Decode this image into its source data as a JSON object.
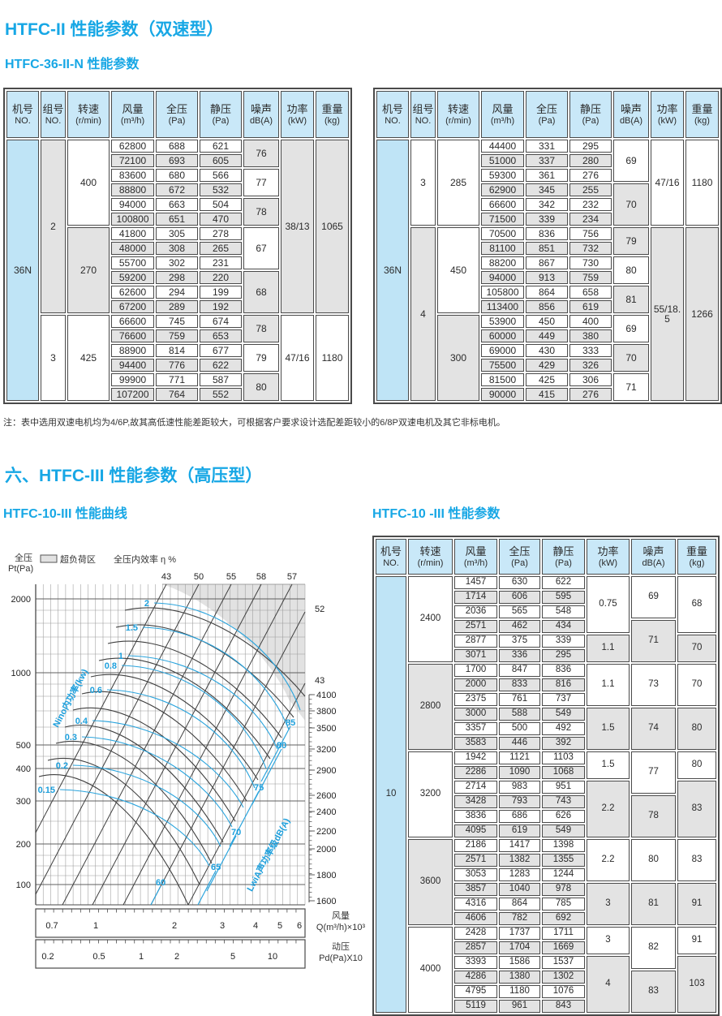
{
  "titles": {
    "h1_dual": "HTFC-II 性能参数（双速型）",
    "h2_36": "HTFC-36-II-N 性能参数",
    "h1_high": "六、HTFC-III 性能参数（高压型）",
    "h2_curve": "HTFC-10-III 性能曲线",
    "h2_params": "HTFC-10 -III 性能参数"
  },
  "note": "注：表中选用双速电机均为4/6P,故其高低速性能差距较大，可根据客户要求设计选配差距较小的6/8P双速电机及其它非标电机。",
  "tables": {
    "t36_headers": [
      [
        "机号",
        "NO."
      ],
      [
        "组号",
        "NO."
      ],
      [
        "转速",
        "(r/min)"
      ],
      [
        "风量",
        "(m³/h)"
      ],
      [
        "全压",
        "(Pa)"
      ],
      [
        "静压",
        "(Pa)"
      ],
      [
        "噪声",
        "dB(A)"
      ],
      [
        "功率",
        "(kW)"
      ],
      [
        "重量",
        "(kg)"
      ]
    ],
    "t36_left_rows": [
      [
        {
          "v": "36N",
          "rs": 18,
          "c": "blue"
        },
        {
          "v": "2",
          "rs": 12,
          "c": "grey"
        },
        {
          "v": "400",
          "rs": 6,
          "c": "white"
        },
        {
          "v": "62800"
        },
        {
          "v": "688"
        },
        {
          "v": "621"
        },
        {
          "v": "76",
          "rs": 2,
          "c": "grey"
        },
        {
          "v": "38/13",
          "rs": 12,
          "c": "grey"
        },
        {
          "v": "1065",
          "rs": 12,
          "c": "grey"
        }
      ],
      [
        {
          "v": "72100"
        },
        {
          "v": "693"
        },
        {
          "v": "605"
        }
      ],
      [
        {
          "v": "83600"
        },
        {
          "v": "680"
        },
        {
          "v": "566"
        },
        {
          "v": "77",
          "rs": 2,
          "c": "white"
        }
      ],
      [
        {
          "v": "88800"
        },
        {
          "v": "672"
        },
        {
          "v": "532"
        }
      ],
      [
        {
          "v": "94000"
        },
        {
          "v": "663"
        },
        {
          "v": "504"
        },
        {
          "v": "78",
          "rs": 2,
          "c": "grey"
        }
      ],
      [
        {
          "v": "100800"
        },
        {
          "v": "651"
        },
        {
          "v": "470"
        }
      ],
      [
        {
          "v": "270",
          "rs": 6,
          "c": "grey"
        },
        {
          "v": "41800"
        },
        {
          "v": "305"
        },
        {
          "v": "278"
        },
        {
          "v": "67",
          "rs": 3,
          "c": "white"
        }
      ],
      [
        {
          "v": "48000"
        },
        {
          "v": "308"
        },
        {
          "v": "265"
        }
      ],
      [
        {
          "v": "55700"
        },
        {
          "v": "302"
        },
        {
          "v": "231"
        }
      ],
      [
        {
          "v": "59200"
        },
        {
          "v": "298"
        },
        {
          "v": "220"
        },
        {
          "v": "68",
          "rs": 3,
          "c": "grey"
        }
      ],
      [
        {
          "v": "62600"
        },
        {
          "v": "294"
        },
        {
          "v": "199"
        }
      ],
      [
        {
          "v": "67200"
        },
        {
          "v": "289"
        },
        {
          "v": "192"
        }
      ],
      [
        {
          "v": "3",
          "rs": 6,
          "c": "white"
        },
        {
          "v": "425",
          "rs": 6,
          "c": "white"
        },
        {
          "v": "66600"
        },
        {
          "v": "745"
        },
        {
          "v": "674"
        },
        {
          "v": "78",
          "rs": 2,
          "c": "grey"
        },
        {
          "v": "47/16",
          "rs": 6,
          "c": "white"
        },
        {
          "v": "1180",
          "rs": 6,
          "c": "white"
        }
      ],
      [
        {
          "v": "76600"
        },
        {
          "v": "759"
        },
        {
          "v": "653"
        }
      ],
      [
        {
          "v": "88900"
        },
        {
          "v": "814"
        },
        {
          "v": "677"
        },
        {
          "v": "79",
          "rs": 2,
          "c": "white"
        }
      ],
      [
        {
          "v": "94400"
        },
        {
          "v": "776"
        },
        {
          "v": "622"
        }
      ],
      [
        {
          "v": "99900"
        },
        {
          "v": "771"
        },
        {
          "v": "587"
        },
        {
          "v": "80",
          "rs": 2,
          "c": "grey"
        }
      ],
      [
        {
          "v": "107200"
        },
        {
          "v": "764"
        },
        {
          "v": "552"
        }
      ]
    ],
    "t36_right_rows": [
      [
        {
          "v": "36N",
          "rs": 18,
          "c": "blue"
        },
        {
          "v": "3",
          "rs": 6,
          "c": "white"
        },
        {
          "v": "285",
          "rs": 6,
          "c": "white"
        },
        {
          "v": "44400"
        },
        {
          "v": "331"
        },
        {
          "v": "295"
        },
        {
          "v": "69",
          "rs": 3,
          "c": "white"
        },
        {
          "v": "47/16",
          "rs": 6,
          "c": "white"
        },
        {
          "v": "1180",
          "rs": 6,
          "c": "white"
        }
      ],
      [
        {
          "v": "51000"
        },
        {
          "v": "337"
        },
        {
          "v": "280"
        }
      ],
      [
        {
          "v": "59300"
        },
        {
          "v": "361"
        },
        {
          "v": "276"
        }
      ],
      [
        {
          "v": "62900"
        },
        {
          "v": "345"
        },
        {
          "v": "255"
        },
        {
          "v": "70",
          "rs": 3,
          "c": "grey"
        }
      ],
      [
        {
          "v": "66600"
        },
        {
          "v": "342"
        },
        {
          "v": "232"
        }
      ],
      [
        {
          "v": "71500"
        },
        {
          "v": "339"
        },
        {
          "v": "234"
        }
      ],
      [
        {
          "v": "4",
          "rs": 12,
          "c": "grey"
        },
        {
          "v": "450",
          "rs": 6,
          "c": "white"
        },
        {
          "v": "70500"
        },
        {
          "v": "836"
        },
        {
          "v": "756"
        },
        {
          "v": "79",
          "rs": 2,
          "c": "grey"
        },
        {
          "v": "55/18.5",
          "rs": 12,
          "c": "grey"
        },
        {
          "v": "1266",
          "rs": 12,
          "c": "grey"
        }
      ],
      [
        {
          "v": "81100"
        },
        {
          "v": "851"
        },
        {
          "v": "732"
        }
      ],
      [
        {
          "v": "88200"
        },
        {
          "v": "867"
        },
        {
          "v": "730"
        },
        {
          "v": "80",
          "rs": 2,
          "c": "white"
        }
      ],
      [
        {
          "v": "94000"
        },
        {
          "v": "913"
        },
        {
          "v": "759"
        }
      ],
      [
        {
          "v": "105800"
        },
        {
          "v": "864"
        },
        {
          "v": "658"
        },
        {
          "v": "81",
          "rs": 2,
          "c": "grey"
        }
      ],
      [
        {
          "v": "113400"
        },
        {
          "v": "856"
        },
        {
          "v": "619"
        }
      ],
      [
        {
          "v": "300",
          "rs": 6,
          "c": "grey"
        },
        {
          "v": "53900"
        },
        {
          "v": "450"
        },
        {
          "v": "400"
        },
        {
          "v": "69",
          "rs": 2,
          "c": "white"
        }
      ],
      [
        {
          "v": "60000"
        },
        {
          "v": "449"
        },
        {
          "v": "380"
        }
      ],
      [
        {
          "v": "69000"
        },
        {
          "v": "430"
        },
        {
          "v": "333"
        },
        {
          "v": "70",
          "rs": 2,
          "c": "grey"
        }
      ],
      [
        {
          "v": "75500"
        },
        {
          "v": "429"
        },
        {
          "v": "326"
        }
      ],
      [
        {
          "v": "81500"
        },
        {
          "v": "425"
        },
        {
          "v": "306"
        },
        {
          "v": "71",
          "rs": 2,
          "c": "white"
        }
      ],
      [
        {
          "v": "90000"
        },
        {
          "v": "415"
        },
        {
          "v": "276"
        }
      ]
    ],
    "t10_headers": [
      [
        "机号",
        "NO."
      ],
      [
        "转速",
        "(r/min)"
      ],
      [
        "风量",
        "(m³/h)"
      ],
      [
        "全压",
        "(Pa)"
      ],
      [
        "静压",
        "(Pa)"
      ],
      [
        "功率",
        "(kW)"
      ],
      [
        "噪声",
        "dB(A)"
      ],
      [
        "重量",
        "(kg)"
      ]
    ],
    "t10_rows": [
      [
        {
          "v": "10",
          "rs": 30,
          "c": "blue"
        },
        {
          "v": "2400",
          "rs": 6,
          "c": "white"
        },
        {
          "v": "1457"
        },
        {
          "v": "630"
        },
        {
          "v": "622"
        },
        {
          "v": "0.75",
          "rs": 4,
          "c": "white"
        },
        {
          "v": "69",
          "rs": 3,
          "c": "white"
        },
        {
          "v": "68",
          "rs": 4,
          "c": "white"
        }
      ],
      [
        {
          "v": "1714"
        },
        {
          "v": "606"
        },
        {
          "v": "595"
        }
      ],
      [
        {
          "v": "2036"
        },
        {
          "v": "565"
        },
        {
          "v": "548"
        }
      ],
      [
        {
          "v": "2571"
        },
        {
          "v": "462"
        },
        {
          "v": "434"
        },
        {
          "v": "71",
          "rs": 3,
          "c": "grey"
        }
      ],
      [
        {
          "v": "2877"
        },
        {
          "v": "375"
        },
        {
          "v": "339"
        },
        {
          "v": "1.1",
          "rs": 2,
          "c": "grey"
        },
        {
          "v": "70",
          "rs": 2,
          "c": "grey"
        }
      ],
      [
        {
          "v": "3071"
        },
        {
          "v": "336"
        },
        {
          "v": "295"
        }
      ],
      [
        {
          "v": "2800",
          "rs": 6,
          "c": "grey"
        },
        {
          "v": "1700"
        },
        {
          "v": "847"
        },
        {
          "v": "836"
        },
        {
          "v": "1.1",
          "rs": 3,
          "c": "white"
        },
        {
          "v": "73",
          "rs": 3,
          "c": "white"
        },
        {
          "v": "70",
          "rs": 3,
          "c": "white"
        }
      ],
      [
        {
          "v": "2000"
        },
        {
          "v": "833"
        },
        {
          "v": "816"
        }
      ],
      [
        {
          "v": "2375"
        },
        {
          "v": "761"
        },
        {
          "v": "737"
        }
      ],
      [
        {
          "v": "3000"
        },
        {
          "v": "588"
        },
        {
          "v": "549"
        },
        {
          "v": "1.5",
          "rs": 3,
          "c": "grey"
        },
        {
          "v": "74",
          "rs": 3,
          "c": "grey"
        },
        {
          "v": "80",
          "rs": 3,
          "c": "grey"
        }
      ],
      [
        {
          "v": "3357"
        },
        {
          "v": "500"
        },
        {
          "v": "492"
        }
      ],
      [
        {
          "v": "3583"
        },
        {
          "v": "446"
        },
        {
          "v": "392"
        }
      ],
      [
        {
          "v": "3200",
          "rs": 6,
          "c": "white"
        },
        {
          "v": "1942"
        },
        {
          "v": "1121"
        },
        {
          "v": "1103"
        },
        {
          "v": "1.5",
          "rs": 2,
          "c": "white"
        },
        {
          "v": "77",
          "rs": 3,
          "c": "white"
        },
        {
          "v": "80",
          "rs": 2,
          "c": "white"
        }
      ],
      [
        {
          "v": "2286"
        },
        {
          "v": "1090"
        },
        {
          "v": "1068"
        }
      ],
      [
        {
          "v": "2714"
        },
        {
          "v": "983"
        },
        {
          "v": "951"
        },
        {
          "v": "2.2",
          "rs": 4,
          "c": "grey"
        },
        {
          "v": "83",
          "rs": 4,
          "c": "grey"
        }
      ],
      [
        {
          "v": "3428"
        },
        {
          "v": "793"
        },
        {
          "v": "743"
        },
        {
          "v": "78",
          "rs": 3,
          "c": "grey"
        }
      ],
      [
        {
          "v": "3836"
        },
        {
          "v": "686"
        },
        {
          "v": "626"
        }
      ],
      [
        {
          "v": "4095"
        },
        {
          "v": "619"
        },
        {
          "v": "549"
        }
      ],
      [
        {
          "v": "3600",
          "rs": 6,
          "c": "grey"
        },
        {
          "v": "2186"
        },
        {
          "v": "1417"
        },
        {
          "v": "1398"
        },
        {
          "v": "2.2",
          "rs": 3,
          "c": "white"
        },
        {
          "v": "80",
          "rs": 3,
          "c": "white"
        },
        {
          "v": "83",
          "rs": 3,
          "c": "white"
        }
      ],
      [
        {
          "v": "2571"
        },
        {
          "v": "1382"
        },
        {
          "v": "1355"
        }
      ],
      [
        {
          "v": "3053"
        },
        {
          "v": "1283"
        },
        {
          "v": "1244"
        }
      ],
      [
        {
          "v": "3857"
        },
        {
          "v": "1040"
        },
        {
          "v": "978"
        },
        {
          "v": "3",
          "rs": 3,
          "c": "grey"
        },
        {
          "v": "81",
          "rs": 3,
          "c": "grey"
        },
        {
          "v": "91",
          "rs": 3,
          "c": "grey"
        }
      ],
      [
        {
          "v": "4316"
        },
        {
          "v": "864"
        },
        {
          "v": "785"
        }
      ],
      [
        {
          "v": "4606"
        },
        {
          "v": "782"
        },
        {
          "v": "692"
        }
      ],
      [
        {
          "v": "4000",
          "rs": 6,
          "c": "white"
        },
        {
          "v": "2428"
        },
        {
          "v": "1737"
        },
        {
          "v": "1711"
        },
        {
          "v": "3",
          "rs": 2,
          "c": "white"
        },
        {
          "v": "82",
          "rs": 3,
          "c": "white"
        },
        {
          "v": "91",
          "rs": 2,
          "c": "white"
        }
      ],
      [
        {
          "v": "2857"
        },
        {
          "v": "1704"
        },
        {
          "v": "1669"
        }
      ],
      [
        {
          "v": "3393"
        },
        {
          "v": "1586"
        },
        {
          "v": "1537"
        },
        {
          "v": "4",
          "rs": 4,
          "c": "grey"
        },
        {
          "v": "103",
          "rs": 4,
          "c": "grey"
        }
      ],
      [
        {
          "v": "4286"
        },
        {
          "v": "1380"
        },
        {
          "v": "1302"
        },
        {
          "v": "83",
          "rs": 3,
          "c": "grey"
        }
      ],
      [
        {
          "v": "4795"
        },
        {
          "v": "1180"
        },
        {
          "v": "1076"
        }
      ],
      [
        {
          "v": "5119"
        },
        {
          "v": "961"
        },
        {
          "v": "843"
        }
      ]
    ]
  },
  "chart_data": {
    "type": "line",
    "title": "HTFC-10-III 性能曲线",
    "ylabel_cn": "全压",
    "ylabel_unit": "Pt(Pa)",
    "y_ticks": [
      2000,
      1000,
      500,
      400,
      300,
      200,
      100
    ],
    "y_axis_scale": "log",
    "x1_label_cn": "风量",
    "x1_label_unit": "Q(m³/h)×10³",
    "x1_ticks": [
      0.7,
      1,
      2,
      3,
      4,
      5,
      6
    ],
    "x2_label_cn": "动压",
    "x2_label_unit": "Pd(Pa)X10",
    "x2_ticks": [
      0.2,
      0.5,
      1,
      2,
      5,
      10
    ],
    "x_axis_scale": "log",
    "rpm_axis": [
      4100,
      3800,
      3500,
      3200,
      2900,
      2600,
      2400,
      2200,
      2000,
      1800,
      1600
    ],
    "efficiency_header": "全压内效率 η %",
    "efficiency_top": [
      43,
      50,
      55,
      58,
      57
    ],
    "efficiency_right": [
      52,
      43
    ],
    "power_kw_label": "Nino内功率(kw)",
    "power_kw_curves": [
      2,
      1.5,
      1,
      0.8,
      0.6,
      0.4,
      0.3,
      0.2,
      0.15
    ],
    "noise_label": "LwiA声功率级dB(A)",
    "noise_dba_curves": [
      85,
      80,
      75,
      70,
      65,
      60
    ],
    "overload_legend": "超负荷区",
    "grid": true
  }
}
